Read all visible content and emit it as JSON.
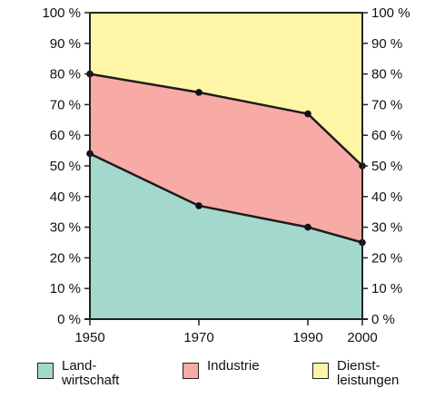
{
  "chart_data": {
    "type": "area",
    "stacked": true,
    "x": [
      1950,
      1970,
      1990,
      2000
    ],
    "x_tick_labels": [
      "1950",
      "1970",
      "1990",
      "2000"
    ],
    "ylim": [
      0,
      100
    ],
    "y_tick_labels": [
      "0 %",
      "10 %",
      "20 %",
      "30 %",
      "40 %",
      "50 %",
      "60 %",
      "70 %",
      "80 %",
      "90 %",
      "100 %"
    ],
    "y_ticks": [
      0,
      10,
      20,
      30,
      40,
      50,
      60,
      70,
      80,
      90,
      100
    ],
    "secondary_y_axis": true,
    "grid": false,
    "legend_position": "bottom",
    "series": [
      {
        "name": "Land-\nwirtschaft",
        "values": [
          54,
          37,
          30,
          25
        ],
        "color": "#a3d9cc"
      },
      {
        "name": "Industrie",
        "values": [
          26,
          37,
          37,
          25
        ],
        "color": "#f7aaa6"
      },
      {
        "name": "Dienst-\nleistungen",
        "values": [
          20,
          26,
          33,
          50
        ],
        "color": "#fef6a6"
      }
    ]
  }
}
